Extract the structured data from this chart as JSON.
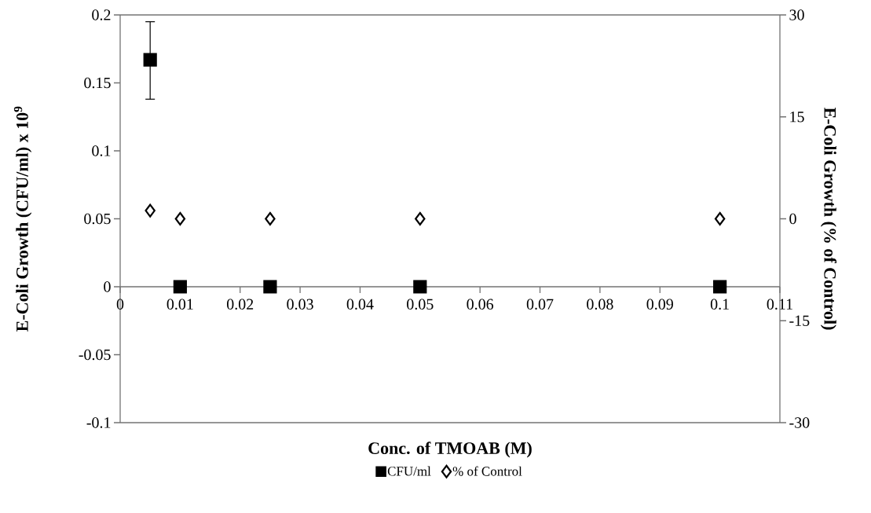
{
  "chart_data": {
    "type": "scatter",
    "xlabel": "Conc. of TMOAB  (M)",
    "ylabel": "E-Coli Growth (CFU/ml) x 10$^{9}$",
    "y2label": "E-Coli Growth (% of Control)",
    "x": [
      0.005,
      0.01,
      0.025,
      0.05,
      0.1
    ],
    "series": [
      {
        "name": "CFU/ml",
        "color": "#000000",
        "marker": "square",
        "values": [
          0.167,
          0,
          0,
          0,
          0
        ],
        "errors": [
          [
            0.138,
            0.195
          ],
          null,
          null,
          null,
          null
        ]
      },
      {
        "name": "% of Control",
        "color": "#000000",
        "marker": "diamond",
        "axis": "y2",
        "values": [
          1.2,
          0,
          0,
          0,
          0
        ]
      }
    ],
    "xlim": [
      0,
      0.11
    ],
    "xticks": [
      0,
      0.01,
      0.02,
      0.03,
      0.04,
      0.05,
      0.06,
      0.07,
      0.08,
      0.09,
      0.1,
      0.11
    ],
    "ylim": [
      -0.1,
      0.2
    ],
    "yticks": [
      -0.1,
      -0.05,
      0,
      0.05,
      0.1,
      0.15,
      0.2
    ],
    "y2lim": [
      -30,
      30
    ],
    "y2ticks": [
      -30,
      -15,
      0,
      15,
      30
    ],
    "grid": false,
    "legend": "bottom"
  }
}
